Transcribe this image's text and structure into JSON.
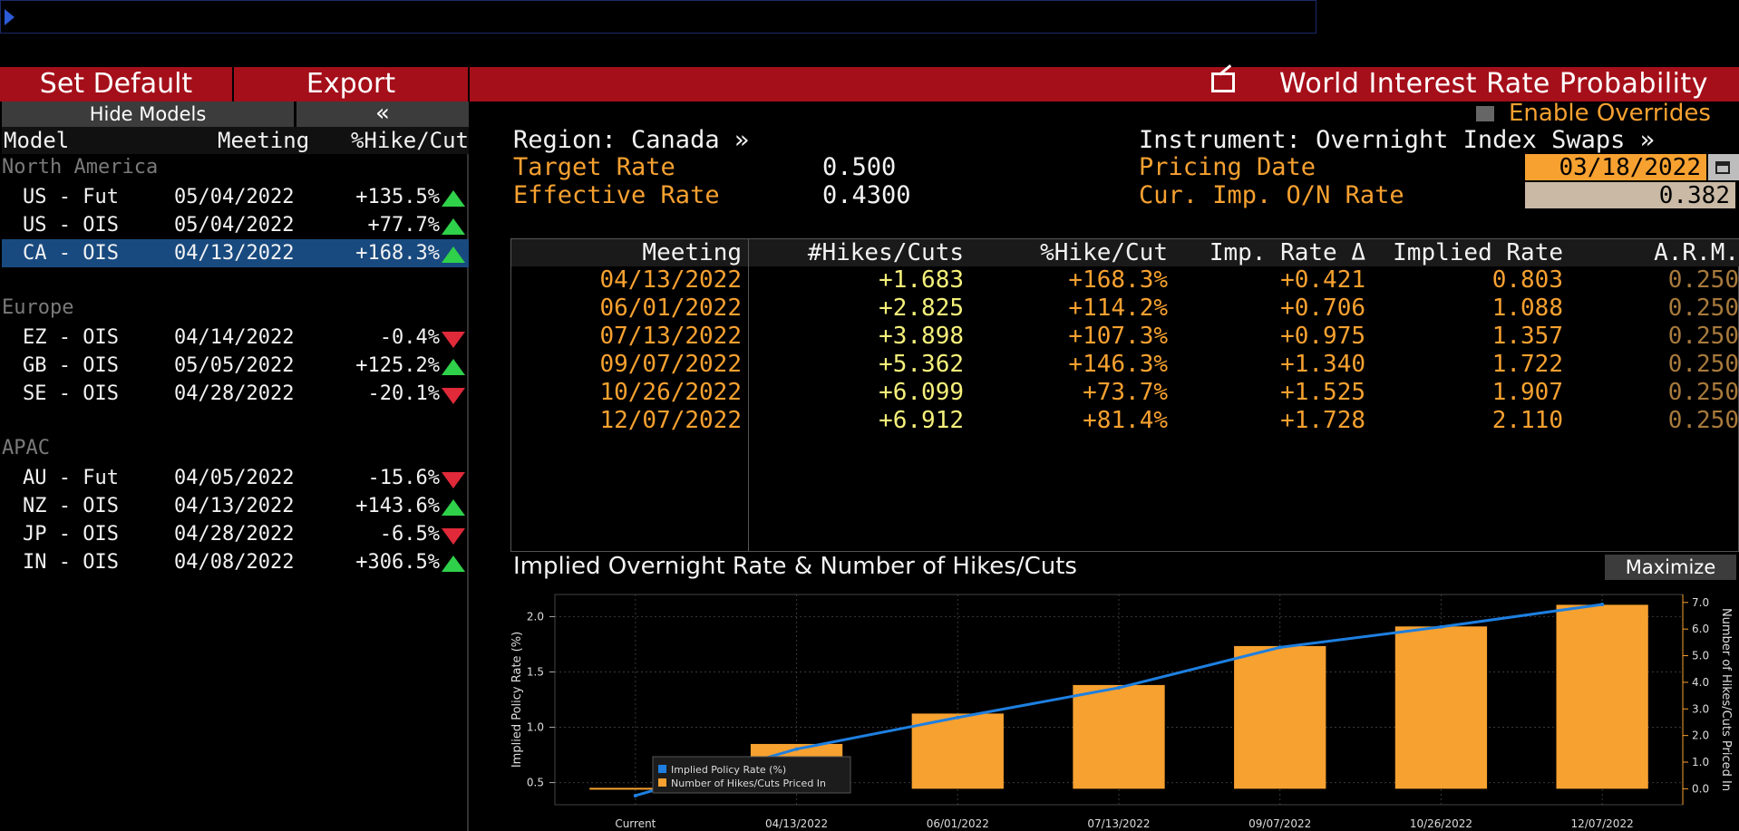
{
  "toolbar": {
    "set_default": "Set Default",
    "export": "Export",
    "title": "World Interest Rate Probability"
  },
  "left": {
    "hide_models": "Hide Models",
    "collapse": "«",
    "headers": {
      "model": "Model",
      "meeting": "Meeting",
      "pct": "%Hike/Cut"
    },
    "groups": [
      {
        "label": "North America",
        "rows": [
          {
            "name": "US - Fut",
            "date": "05/04/2022",
            "pct": "+135.5%",
            "dir": "up"
          },
          {
            "name": "US - OIS",
            "date": "05/04/2022",
            "pct": "+77.7%",
            "dir": "up"
          },
          {
            "name": "CA - OIS",
            "date": "04/13/2022",
            "pct": "+168.3%",
            "dir": "up",
            "selected": true
          }
        ]
      },
      {
        "label": "Europe",
        "rows": [
          {
            "name": "EZ - OIS",
            "date": "04/14/2022",
            "pct": "-0.4%",
            "dir": "down"
          },
          {
            "name": "GB - OIS",
            "date": "05/05/2022",
            "pct": "+125.2%",
            "dir": "up"
          },
          {
            "name": "SE - OIS",
            "date": "04/28/2022",
            "pct": "-20.1%",
            "dir": "down"
          }
        ]
      },
      {
        "label": "APAC",
        "rows": [
          {
            "name": "AU - Fut",
            "date": "04/05/2022",
            "pct": "-15.6%",
            "dir": "down"
          },
          {
            "name": "NZ - OIS",
            "date": "04/13/2022",
            "pct": "+143.6%",
            "dir": "up"
          },
          {
            "name": "JP - OIS",
            "date": "04/28/2022",
            "pct": "-6.5%",
            "dir": "down"
          },
          {
            "name": "IN - OIS",
            "date": "04/08/2022",
            "pct": "+306.5%",
            "dir": "up"
          }
        ]
      }
    ]
  },
  "info": {
    "enable_overrides": "Enable Overrides",
    "region": "Region: Canada »",
    "instrument": "Instrument: Overnight Index Swaps »",
    "target_rate_label": "Target Rate",
    "target_rate": "0.500",
    "effective_rate_label": "Effective Rate",
    "effective_rate": "0.4300",
    "pricing_date_label": "Pricing Date",
    "pricing_date": "03/18/2022",
    "on_rate_label": "Cur. Imp. O/N Rate",
    "on_rate": "0.382"
  },
  "table": {
    "headers": [
      "Meeting",
      "#Hikes/Cuts",
      "%Hike/Cut",
      "Imp. Rate Δ",
      "Implied Rate",
      "A.R.M."
    ],
    "rows": [
      [
        "04/13/2022",
        "+1.683",
        "+168.3%",
        "+0.421",
        "0.803",
        "0.250"
      ],
      [
        "06/01/2022",
        "+2.825",
        "+114.2%",
        "+0.706",
        "1.088",
        "0.250"
      ],
      [
        "07/13/2022",
        "+3.898",
        "+107.3%",
        "+0.975",
        "1.357",
        "0.250"
      ],
      [
        "09/07/2022",
        "+5.362",
        "+146.3%",
        "+1.340",
        "1.722",
        "0.250"
      ],
      [
        "10/26/2022",
        "+6.099",
        "+73.7%",
        "+1.525",
        "1.907",
        "0.250"
      ],
      [
        "12/07/2022",
        "+6.912",
        "+81.4%",
        "+1.728",
        "2.110",
        "0.250"
      ]
    ]
  },
  "chart": {
    "title": "Implied Overnight Rate & Number of Hikes/Cuts",
    "maximize": "Maximize"
  },
  "colors": {
    "accent_red": "#a50f1a",
    "orange": "#f7a130",
    "line_blue": "#1e7fe0",
    "up_green": "#2fd04a",
    "down_red": "#e02a3a"
  },
  "chart_data": {
    "type": "bar",
    "categories": [
      "Current",
      "04/13/2022",
      "06/01/2022",
      "07/13/2022",
      "09/07/2022",
      "10/26/2022",
      "12/07/2022"
    ],
    "series": [
      {
        "name": "Implied Policy Rate (%)",
        "type": "line",
        "axis": "left",
        "values": [
          0.382,
          0.803,
          1.088,
          1.357,
          1.722,
          1.907,
          2.11
        ]
      },
      {
        "name": "Number of Hikes/Cuts Priced In",
        "type": "bar",
        "axis": "right",
        "values": [
          0,
          1.683,
          2.825,
          3.898,
          5.362,
          6.099,
          6.912
        ]
      }
    ],
    "ylabel": "Implied Policy Rate (%)",
    "y2label": "Number of Hikes/Cuts Priced In",
    "yticks": [
      "0.5",
      "1.0",
      "1.5",
      "2.0"
    ],
    "y2ticks": [
      "0.0",
      "1.0",
      "2.0",
      "3.0",
      "4.0",
      "5.0",
      "6.0",
      "7.0"
    ],
    "ylim": [
      0.3,
      2.2
    ],
    "y2lim": [
      -0.6,
      7.3
    ],
    "legend": "bottom-left",
    "grid": true
  }
}
